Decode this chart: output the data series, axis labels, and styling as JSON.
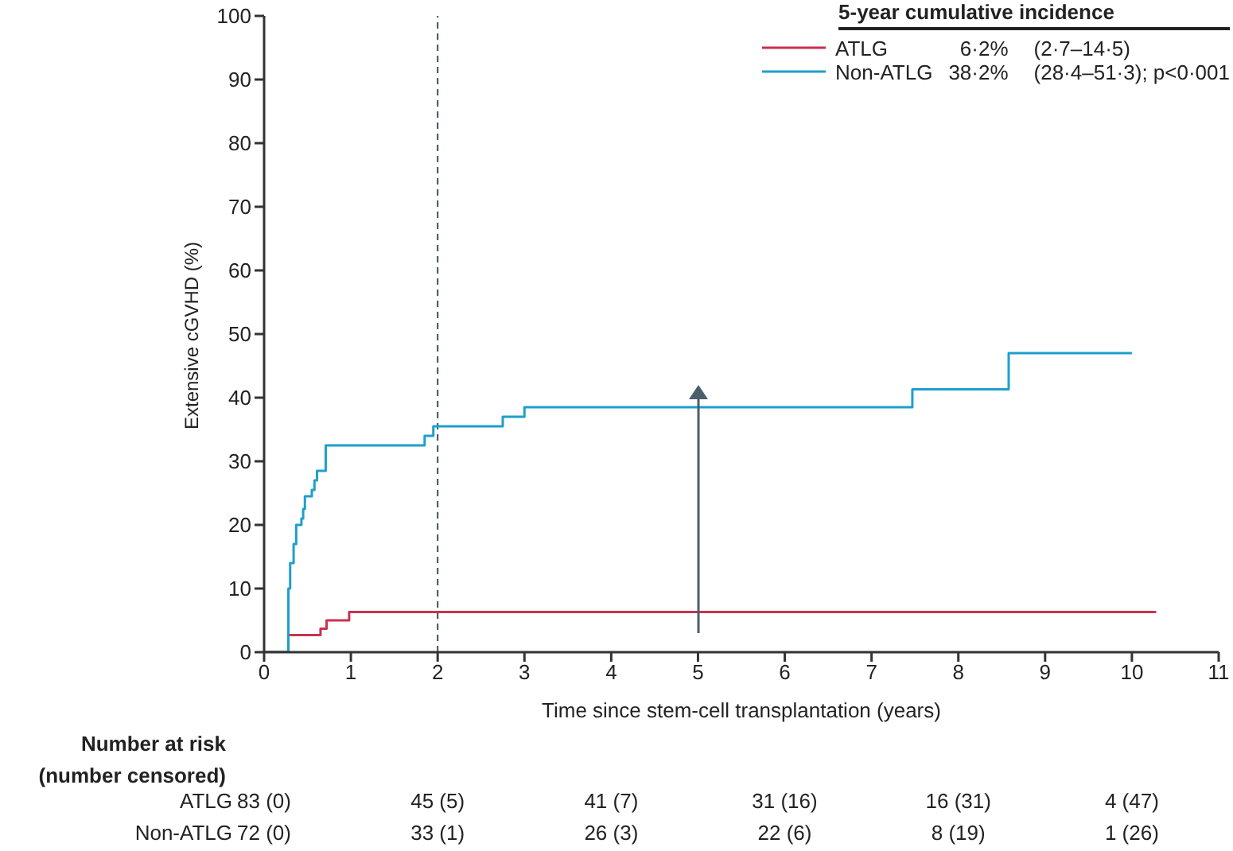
{
  "chart_data": {
    "type": "step",
    "xlabel": "Time since stem-cell transplantation (years)",
    "ylabel": "Extensive cGVHD (%)",
    "legend_title": "5-year cumulative incidence",
    "series": [
      {
        "name": "ATLG",
        "color": "#c8324f",
        "x": [
          0,
          0.28,
          0.65,
          0.72,
          0.98,
          10.28
        ],
        "values": [
          0,
          2.7,
          3.7,
          5,
          6.3,
          6.3
        ]
      },
      {
        "name": "Non-ATLG",
        "color": "#1e9fcc",
        "x": [
          0,
          0.28,
          0.3,
          0.34,
          0.37,
          0.43,
          0.45,
          0.47,
          0.55,
          0.58,
          0.61,
          0.71,
          1.85,
          1.95,
          2.75,
          3.0,
          7.47,
          8.58,
          10.0
        ],
        "values": [
          0,
          10,
          14,
          17,
          20,
          21,
          22.5,
          24.5,
          25.5,
          27,
          28.5,
          32.5,
          34,
          35.5,
          37,
          38.5,
          41.3,
          47,
          47
        ]
      }
    ],
    "xlim": [
      0,
      11
    ],
    "xticks": [
      0,
      1,
      2,
      3,
      4,
      5,
      6,
      7,
      8,
      9,
      10,
      11
    ],
    "ylim": [
      0,
      100
    ],
    "yticks": [
      0,
      10,
      20,
      30,
      40,
      50,
      60,
      70,
      80,
      90,
      100
    ],
    "ref_lines": [
      {
        "axis": "x",
        "value": 2,
        "color": "#3d4f5c",
        "line_style": "dashed"
      }
    ],
    "grid": false,
    "legend": "top right",
    "marker": "none",
    "line_style": "solid",
    "annotations": [
      "6·2%",
      "(2·7–14·5)",
      "38·2%",
      "(28·4–51·3); p<0·001",
      "Number at risk",
      "(number censored)",
      "ATLG",
      "83 (0)",
      "45 (5)",
      "41 (7)",
      "31 (16)",
      "16 (31)",
      "4 (47)",
      "Non-ATLG",
      "72 (0)",
      "33 (1)",
      "26 (3)",
      "22 (6)",
      "8 (19)",
      "1 (26)"
    ]
  }
}
